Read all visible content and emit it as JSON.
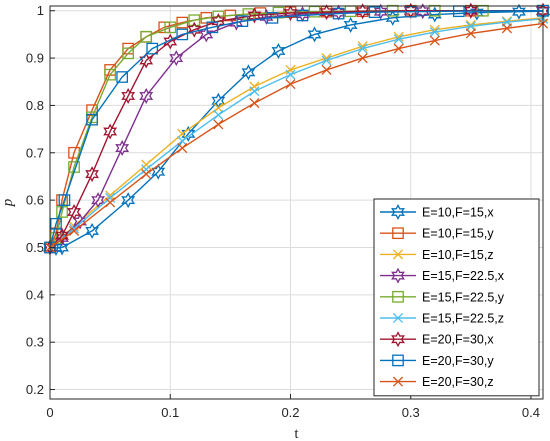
{
  "chart_data": {
    "type": "line",
    "title": "",
    "xlabel": "t",
    "ylabel": "p",
    "xlim": [
      0,
      0.41
    ],
    "ylim": [
      0.18,
      1.01
    ],
    "xticks": [
      0,
      0.1,
      0.2,
      0.3,
      0.4
    ],
    "xtick_labels": [
      "0",
      "0.1",
      "0.2",
      "0.3",
      "0.4"
    ],
    "yticks": [
      0.2,
      0.3,
      0.4,
      0.5,
      0.6,
      0.7,
      0.8,
      0.9,
      1.0
    ],
    "ytick_labels": [
      "0.2",
      "0.3",
      "0.4",
      "0.5",
      "0.6",
      "0.7",
      "0.8",
      "0.9",
      "1"
    ],
    "grid": true,
    "legend_position": "right",
    "series": [
      {
        "name": "E=10,F=15,x",
        "color": "#0072BD",
        "marker": "hexagram",
        "x": [
          0,
          0.005,
          0.01,
          0.035,
          0.065,
          0.09,
          0.115,
          0.14,
          0.165,
          0.19,
          0.22,
          0.25,
          0.285,
          0.32,
          0.355,
          0.39,
          0.41
        ],
        "y": [
          0.5,
          0.499,
          0.5,
          0.535,
          0.6,
          0.66,
          0.74,
          0.81,
          0.87,
          0.915,
          0.95,
          0.97,
          0.985,
          0.992,
          0.996,
          0.998,
          0.999
        ]
      },
      {
        "name": "E=10,F=15,y",
        "color": "#D95319",
        "marker": "square",
        "x": [
          0,
          0.005,
          0.01,
          0.02,
          0.035,
          0.05,
          0.065,
          0.08,
          0.095,
          0.11,
          0.13,
          0.15,
          0.175,
          0.2,
          0.23,
          0.26,
          0.3,
          0.35,
          0.41
        ],
        "y": [
          0.5,
          0.53,
          0.6,
          0.7,
          0.79,
          0.875,
          0.92,
          0.945,
          0.965,
          0.975,
          0.985,
          0.99,
          0.995,
          0.997,
          0.998,
          0.999,
          1.0,
          1.0,
          1.0
        ]
      },
      {
        "name": "E=10,F=15,z",
        "color": "#EDB120",
        "marker": "x",
        "x": [
          0,
          0.02,
          0.05,
          0.08,
          0.11,
          0.14,
          0.17,
          0.2,
          0.23,
          0.26,
          0.29,
          0.32,
          0.35,
          0.38,
          0.41
        ],
        "y": [
          0.5,
          0.545,
          0.61,
          0.675,
          0.74,
          0.795,
          0.84,
          0.875,
          0.9,
          0.925,
          0.945,
          0.96,
          0.97,
          0.978,
          0.985
        ]
      },
      {
        "name": "E=15,F=22.5,x",
        "color": "#7E2F8E",
        "marker": "hexagram",
        "x": [
          0,
          0.01,
          0.025,
          0.04,
          0.06,
          0.08,
          0.105,
          0.13,
          0.155,
          0.18,
          0.21,
          0.24,
          0.275,
          0.31,
          0.35,
          0.41
        ],
        "y": [
          0.5,
          0.52,
          0.555,
          0.6,
          0.71,
          0.82,
          0.9,
          0.95,
          0.975,
          0.987,
          0.993,
          0.996,
          0.998,
          0.999,
          1.0,
          1.0
        ]
      },
      {
        "name": "E=15,F=22.5,y",
        "color": "#77AC30",
        "marker": "square",
        "x": [
          0,
          0.005,
          0.01,
          0.02,
          0.035,
          0.05,
          0.065,
          0.08,
          0.1,
          0.12,
          0.14,
          0.165,
          0.19,
          0.22,
          0.25,
          0.285,
          0.32,
          0.36,
          0.41
        ],
        "y": [
          0.5,
          0.52,
          0.575,
          0.67,
          0.775,
          0.865,
          0.91,
          0.945,
          0.965,
          0.98,
          0.988,
          0.993,
          0.996,
          0.998,
          0.999,
          1.0,
          1.0,
          1.0,
          1.0
        ]
      },
      {
        "name": "E=15,F=22.5,z",
        "color": "#4DBEEE",
        "marker": "x",
        "x": [
          0,
          0.02,
          0.05,
          0.08,
          0.11,
          0.14,
          0.17,
          0.2,
          0.23,
          0.26,
          0.29,
          0.32,
          0.35,
          0.38,
          0.41
        ],
        "y": [
          0.5,
          0.54,
          0.605,
          0.665,
          0.725,
          0.78,
          0.83,
          0.865,
          0.895,
          0.92,
          0.94,
          0.955,
          0.967,
          0.976,
          0.983
        ]
      },
      {
        "name": "E=20,F=30,x",
        "color": "#A2142F",
        "marker": "hexagram",
        "x": [
          0,
          0.01,
          0.02,
          0.035,
          0.05,
          0.065,
          0.08,
          0.1,
          0.12,
          0.14,
          0.17,
          0.2,
          0.23,
          0.26,
          0.3,
          0.35,
          0.41
        ],
        "y": [
          0.5,
          0.525,
          0.575,
          0.655,
          0.745,
          0.82,
          0.895,
          0.935,
          0.96,
          0.978,
          0.99,
          0.995,
          0.997,
          0.999,
          1.0,
          1.0,
          1.0
        ]
      },
      {
        "name": "E=20,F=30,y",
        "color": "#0072BD",
        "marker": "square",
        "x": [
          0,
          0.005,
          0.012,
          0.035,
          0.06,
          0.085,
          0.11,
          0.135,
          0.16,
          0.185,
          0.21,
          0.24,
          0.27,
          0.3,
          0.34,
          0.41
        ],
        "y": [
          0.5,
          0.55,
          0.6,
          0.77,
          0.86,
          0.92,
          0.95,
          0.965,
          0.978,
          0.985,
          0.99,
          0.994,
          0.997,
          0.998,
          0.999,
          1.0
        ]
      },
      {
        "name": "E=20,F=30,z",
        "color": "#D95319",
        "marker": "x",
        "x": [
          0,
          0.02,
          0.05,
          0.08,
          0.11,
          0.14,
          0.17,
          0.2,
          0.23,
          0.26,
          0.29,
          0.32,
          0.35,
          0.38,
          0.41
        ],
        "y": [
          0.5,
          0.535,
          0.595,
          0.655,
          0.71,
          0.76,
          0.805,
          0.845,
          0.875,
          0.9,
          0.92,
          0.937,
          0.952,
          0.963,
          0.973
        ]
      }
    ]
  }
}
